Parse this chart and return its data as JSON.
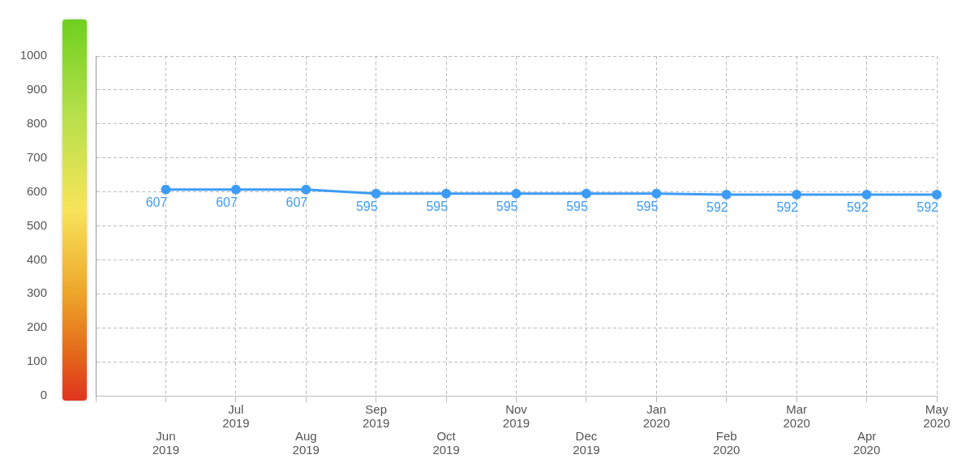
{
  "chart_data": {
    "type": "line",
    "categories": [
      null,
      "Jun 2019",
      "Jul 2019",
      "Aug 2019",
      "Sep 2019",
      "Oct 2019",
      "Nov 2019",
      "Dec 2019",
      "Jan 2020",
      "Feb 2020",
      "Mar 2020",
      "Apr 2020",
      "May 2020"
    ],
    "series": [
      {
        "color": "#3d9cf5",
        "values": [
          null,
          607,
          607,
          607,
          595,
          595,
          595,
          595,
          595,
          592,
          592,
          592,
          592
        ]
      }
    ],
    "ylim": [
      0,
      1000
    ],
    "yticks": [
      0,
      100,
      200,
      300,
      400,
      500,
      600,
      700,
      800,
      900,
      1000
    ],
    "grid": true,
    "legend": false,
    "marker": "circle",
    "line_style": "solid",
    "data_labels": true
  }
}
